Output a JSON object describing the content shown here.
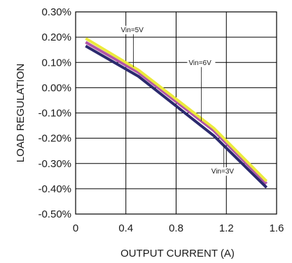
{
  "chart_data": {
    "type": "line",
    "title": "",
    "xlabel": "OUTPUT CURRENT (A)",
    "ylabel": "LOAD REGULATION",
    "xlim": [
      0,
      1.6
    ],
    "ylim": [
      -0.5,
      0.3
    ],
    "x_ticks": [
      0,
      0.4,
      0.8,
      1.2,
      1.6
    ],
    "x_tick_labels": [
      "0",
      "0.4",
      "0.8",
      "1.2",
      "1.6"
    ],
    "y_ticks": [
      0.3,
      0.2,
      0.1,
      0.0,
      -0.1,
      -0.2,
      -0.3,
      -0.4,
      -0.5
    ],
    "y_tick_labels": [
      "0.30%",
      "0.20%",
      "0.10%",
      "0.00%",
      "-0.10%",
      "-0.20%",
      "-0.30%",
      "-0.40%",
      "-0.50%"
    ],
    "grid": true,
    "series": [
      {
        "name": "Vin=6V",
        "color": "#b356a8",
        "x": [
          0.08,
          0.5,
          1.1,
          1.52
        ],
        "y": [
          0.18,
          0.06,
          -0.17,
          -0.38
        ]
      },
      {
        "name": "Vin=5V",
        "color": "#ecea3c",
        "x": [
          0.08,
          0.5,
          1.1,
          1.52
        ],
        "y": [
          0.195,
          0.07,
          -0.16,
          -0.37
        ]
      },
      {
        "name": "Vin=3V",
        "color": "#2b2a6e",
        "x": [
          0.08,
          0.5,
          1.1,
          1.52
        ],
        "y": [
          0.165,
          0.045,
          -0.19,
          -0.395
        ]
      }
    ],
    "annotations": [
      {
        "text": "Vin=5V",
        "x": 0.36,
        "y": 0.22,
        "series": "Vin=5V"
      },
      {
        "text": "Vin=6V",
        "x": 0.9,
        "y": 0.09,
        "series": "Vin=6V"
      },
      {
        "text": "Vin=3V",
        "x": 1.08,
        "y": -0.34,
        "series": "Vin=3V"
      }
    ]
  }
}
